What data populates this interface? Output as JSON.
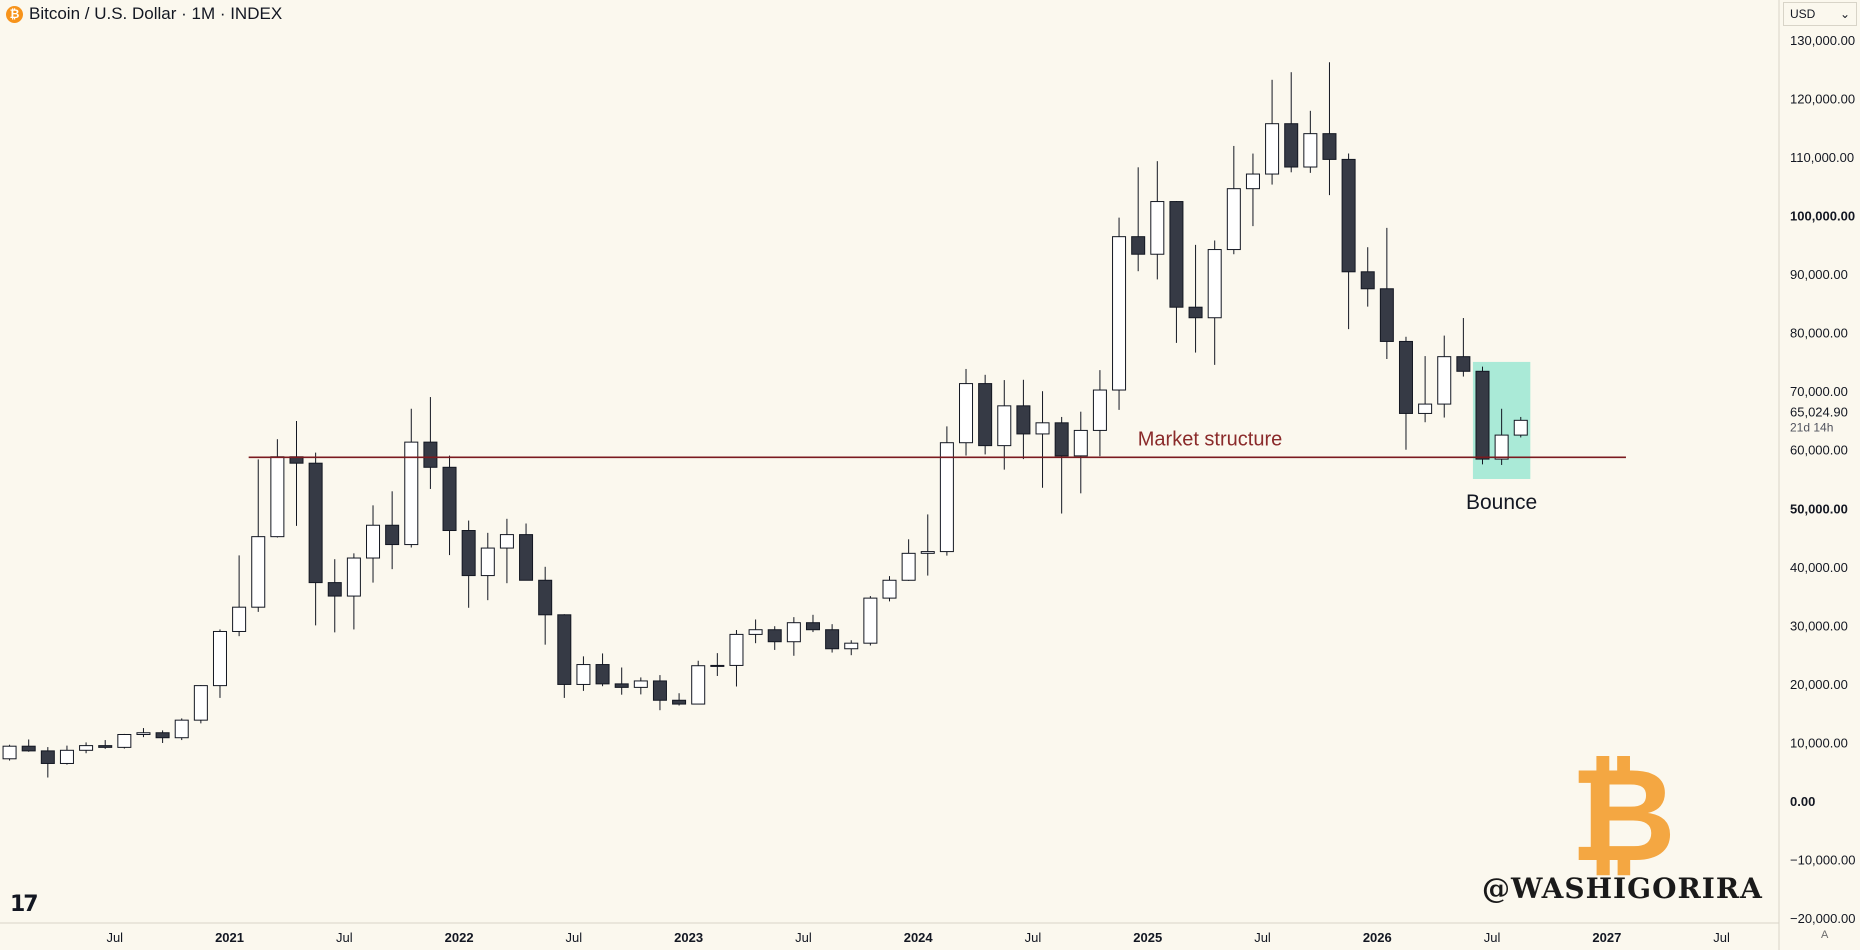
{
  "header": {
    "title": "Bitcoin / U.S. Dollar · 1M · INDEX",
    "coin_glyph": "₿"
  },
  "currency_selector": {
    "value": "USD",
    "chevron": "⌄"
  },
  "branding": {
    "logo_text": "17",
    "watermark": "@WASHIGORIRA",
    "btc_glyph": "₿",
    "scale_mode": "A"
  },
  "colors": {
    "background": "#fbf8ee",
    "bull_fill": "#ffffff",
    "bear_fill": "#363a45",
    "line": "#7b1a1f",
    "highlight": "#8fe6cf",
    "annotation": "#8a2a2a"
  },
  "chart_data": {
    "type": "candlestick",
    "title": "Bitcoin / U.S. Dollar · 1M · INDEX",
    "interval": "1M",
    "currency": "USD",
    "ylim": [
      -20000,
      130000
    ],
    "xlim": [
      "2020-01",
      "2027-09"
    ],
    "yticks": [
      "130,000.00",
      "120,000.00",
      "110,000.00",
      "100,000.00",
      "90,000.00",
      "80,000.00",
      "70,000.00",
      "60,000.00",
      "50,000.00",
      "40,000.00",
      "30,000.00",
      "20,000.00",
      "10,000.00",
      "0.00",
      "−10,000.00",
      "−20,000.00"
    ],
    "ytick_values": [
      130000,
      120000,
      110000,
      100000,
      90000,
      80000,
      70000,
      60000,
      50000,
      40000,
      30000,
      20000,
      10000,
      0,
      -10000,
      -20000
    ],
    "bold_ticks": [
      "100,000.00",
      "50,000.00",
      "0.00"
    ],
    "xticks": [
      {
        "date": "2020-07",
        "label": "Jul",
        "bold": false
      },
      {
        "date": "2021-01",
        "label": "2021",
        "bold": true
      },
      {
        "date": "2021-07",
        "label": "Jul",
        "bold": false
      },
      {
        "date": "2022-01",
        "label": "2022",
        "bold": true
      },
      {
        "date": "2022-07",
        "label": "Jul",
        "bold": false
      },
      {
        "date": "2023-01",
        "label": "2023",
        "bold": true
      },
      {
        "date": "2023-07",
        "label": "Jul",
        "bold": false
      },
      {
        "date": "2024-01",
        "label": "2024",
        "bold": true
      },
      {
        "date": "2024-07",
        "label": "Jul",
        "bold": false
      },
      {
        "date": "2025-01",
        "label": "2025",
        "bold": true
      },
      {
        "date": "2025-07",
        "label": "Jul",
        "bold": false
      },
      {
        "date": "2026-01",
        "label": "2026",
        "bold": true
      },
      {
        "date": "2026-07",
        "label": "Jul",
        "bold": false
      },
      {
        "date": "2027-01",
        "label": "2027",
        "bold": true
      },
      {
        "date": "2027-07",
        "label": "Jul",
        "bold": false
      }
    ],
    "candles": [
      {
        "date": "2020-01",
        "o": 7200,
        "h": 9600,
        "l": 6900,
        "c": 9350
      },
      {
        "date": "2020-02",
        "o": 9350,
        "h": 10500,
        "l": 8400,
        "c": 8550
      },
      {
        "date": "2020-03",
        "o": 8550,
        "h": 9200,
        "l": 4000,
        "c": 6400
      },
      {
        "date": "2020-04",
        "o": 6400,
        "h": 9450,
        "l": 6200,
        "c": 8650
      },
      {
        "date": "2020-05",
        "o": 8650,
        "h": 10000,
        "l": 8150,
        "c": 9450
      },
      {
        "date": "2020-06",
        "o": 9450,
        "h": 10400,
        "l": 8900,
        "c": 9150
      },
      {
        "date": "2020-07",
        "o": 9150,
        "h": 11450,
        "l": 8950,
        "c": 11350
      },
      {
        "date": "2020-08",
        "o": 11350,
        "h": 12450,
        "l": 10900,
        "c": 11650
      },
      {
        "date": "2020-09",
        "o": 11650,
        "h": 12050,
        "l": 9900,
        "c": 10800
      },
      {
        "date": "2020-10",
        "o": 10800,
        "h": 14100,
        "l": 10400,
        "c": 13800
      },
      {
        "date": "2020-11",
        "o": 13800,
        "h": 19800,
        "l": 13250,
        "c": 19700
      },
      {
        "date": "2020-12",
        "o": 19700,
        "h": 29300,
        "l": 17600,
        "c": 28950
      },
      {
        "date": "2021-01",
        "o": 28950,
        "h": 41950,
        "l": 28150,
        "c": 33100
      },
      {
        "date": "2021-02",
        "o": 33100,
        "h": 58350,
        "l": 32300,
        "c": 45150
      },
      {
        "date": "2021-03",
        "o": 45150,
        "h": 61800,
        "l": 45000,
        "c": 58800
      },
      {
        "date": "2021-04",
        "o": 58800,
        "h": 64900,
        "l": 47000,
        "c": 57700
      },
      {
        "date": "2021-05",
        "o": 57700,
        "h": 59500,
        "l": 30000,
        "c": 37300
      },
      {
        "date": "2021-06",
        "o": 37300,
        "h": 41300,
        "l": 28800,
        "c": 35000
      },
      {
        "date": "2021-07",
        "o": 35000,
        "h": 42300,
        "l": 29300,
        "c": 41500
      },
      {
        "date": "2021-08",
        "o": 41500,
        "h": 50500,
        "l": 37300,
        "c": 47100
      },
      {
        "date": "2021-09",
        "o": 47100,
        "h": 52900,
        "l": 39600,
        "c": 43800
      },
      {
        "date": "2021-10",
        "o": 43800,
        "h": 67000,
        "l": 43300,
        "c": 61300
      },
      {
        "date": "2021-11",
        "o": 61300,
        "h": 69000,
        "l": 53300,
        "c": 57000
      },
      {
        "date": "2021-12",
        "o": 57000,
        "h": 59000,
        "l": 42000,
        "c": 46200
      },
      {
        "date": "2022-01",
        "o": 46200,
        "h": 47900,
        "l": 33000,
        "c": 38500
      },
      {
        "date": "2022-02",
        "o": 38500,
        "h": 45800,
        "l": 34300,
        "c": 43200
      },
      {
        "date": "2022-03",
        "o": 43200,
        "h": 48200,
        "l": 37200,
        "c": 45500
      },
      {
        "date": "2022-04",
        "o": 45500,
        "h": 47400,
        "l": 37700,
        "c": 37700
      },
      {
        "date": "2022-05",
        "o": 37700,
        "h": 40000,
        "l": 26700,
        "c": 31800
      },
      {
        "date": "2022-06",
        "o": 31800,
        "h": 31900,
        "l": 17600,
        "c": 19900
      },
      {
        "date": "2022-07",
        "o": 19900,
        "h": 24700,
        "l": 18800,
        "c": 23300
      },
      {
        "date": "2022-08",
        "o": 23300,
        "h": 25200,
        "l": 19600,
        "c": 20000
      },
      {
        "date": "2022-09",
        "o": 20000,
        "h": 22800,
        "l": 18150,
        "c": 19400
      },
      {
        "date": "2022-10",
        "o": 19400,
        "h": 21100,
        "l": 18200,
        "c": 20500
      },
      {
        "date": "2022-11",
        "o": 20500,
        "h": 21500,
        "l": 15500,
        "c": 17200
      },
      {
        "date": "2022-12",
        "o": 17200,
        "h": 18400,
        "l": 16300,
        "c": 16550
      },
      {
        "date": "2023-01",
        "o": 16550,
        "h": 23950,
        "l": 16500,
        "c": 23100
      },
      {
        "date": "2023-02",
        "o": 23100,
        "h": 25250,
        "l": 21350,
        "c": 23150
      },
      {
        "date": "2023-03",
        "o": 23150,
        "h": 29200,
        "l": 19550,
        "c": 28450
      },
      {
        "date": "2023-04",
        "o": 28450,
        "h": 31000,
        "l": 26950,
        "c": 29250
      },
      {
        "date": "2023-05",
        "o": 29250,
        "h": 29850,
        "l": 25800,
        "c": 27200
      },
      {
        "date": "2023-06",
        "o": 27200,
        "h": 31400,
        "l": 24800,
        "c": 30450
      },
      {
        "date": "2023-07",
        "o": 30450,
        "h": 31800,
        "l": 28850,
        "c": 29250
      },
      {
        "date": "2023-08",
        "o": 29250,
        "h": 30200,
        "l": 25350,
        "c": 26000
      },
      {
        "date": "2023-09",
        "o": 26000,
        "h": 27450,
        "l": 24900,
        "c": 26950
      },
      {
        "date": "2023-10",
        "o": 26950,
        "h": 35000,
        "l": 26550,
        "c": 34650
      },
      {
        "date": "2023-11",
        "o": 34650,
        "h": 38400,
        "l": 34100,
        "c": 37700
      },
      {
        "date": "2023-12",
        "o": 37700,
        "h": 44700,
        "l": 37600,
        "c": 42300
      },
      {
        "date": "2024-01",
        "o": 42300,
        "h": 48950,
        "l": 38500,
        "c": 42600
      },
      {
        "date": "2024-02",
        "o": 42600,
        "h": 64000,
        "l": 41900,
        "c": 61200
      },
      {
        "date": "2024-03",
        "o": 61200,
        "h": 73800,
        "l": 59000,
        "c": 71300
      },
      {
        "date": "2024-04",
        "o": 71300,
        "h": 72800,
        "l": 59200,
        "c": 60700
      },
      {
        "date": "2024-05",
        "o": 60700,
        "h": 71900,
        "l": 56600,
        "c": 67500
      },
      {
        "date": "2024-06",
        "o": 67500,
        "h": 71950,
        "l": 58400,
        "c": 62700
      },
      {
        "date": "2024-07",
        "o": 62700,
        "h": 70000,
        "l": 53500,
        "c": 64600
      },
      {
        "date": "2024-08",
        "o": 64600,
        "h": 65600,
        "l": 49100,
        "c": 58950
      },
      {
        "date": "2024-09",
        "o": 58950,
        "h": 66500,
        "l": 52550,
        "c": 63300
      },
      {
        "date": "2024-10",
        "o": 63300,
        "h": 73600,
        "l": 58900,
        "c": 70200
      },
      {
        "date": "2024-11",
        "o": 70200,
        "h": 99650,
        "l": 66800,
        "c": 96400
      },
      {
        "date": "2024-12",
        "o": 96400,
        "h": 108250,
        "l": 90500,
        "c": 93400
      },
      {
        "date": "2025-01",
        "o": 93400,
        "h": 109300,
        "l": 89100,
        "c": 102400
      },
      {
        "date": "2025-02",
        "o": 102400,
        "h": 102500,
        "l": 78250,
        "c": 84350
      },
      {
        "date": "2025-03",
        "o": 84350,
        "h": 95000,
        "l": 76600,
        "c": 82550
      },
      {
        "date": "2025-04",
        "o": 82550,
        "h": 95750,
        "l": 74500,
        "c": 94200
      },
      {
        "date": "2025-05",
        "o": 94200,
        "h": 111900,
        "l": 93400,
        "c": 104600
      },
      {
        "date": "2025-06",
        "o": 104600,
        "h": 110600,
        "l": 98200,
        "c": 107100
      },
      {
        "date": "2025-07",
        "o": 107100,
        "h": 123200,
        "l": 105300,
        "c": 115700
      },
      {
        "date": "2025-08",
        "o": 115700,
        "h": 124500,
        "l": 107400,
        "c": 108300
      },
      {
        "date": "2025-09",
        "o": 108300,
        "h": 117900,
        "l": 107300,
        "c": 114000
      },
      {
        "date": "2025-10",
        "o": 114000,
        "h": 126200,
        "l": 103500,
        "c": 109600
      },
      {
        "date": "2025-11",
        "o": 109600,
        "h": 110600,
        "l": 80600,
        "c": 90400
      },
      {
        "date": "2025-12",
        "o": 90400,
        "h": 94600,
        "l": 84450,
        "c": 87500
      },
      {
        "date": "2026-01",
        "o": 87500,
        "h": 97900,
        "l": 75500,
        "c": 78500
      },
      {
        "date": "2026-02",
        "o": 78500,
        "h": 79300,
        "l": 60000,
        "c": 66200
      },
      {
        "date": "2026-03",
        "o": 66200,
        "h": 76000,
        "l": 64700,
        "c": 67800
      },
      {
        "date": "2026-04",
        "o": 67800,
        "h": 79500,
        "l": 65500,
        "c": 75900
      },
      {
        "date": "2026-05",
        "o": 75900,
        "h": 82500,
        "l": 72500,
        "c": 73400
      },
      {
        "date": "2026-06",
        "o": 73400,
        "h": 74200,
        "l": 57500,
        "c": 58400
      },
      {
        "date": "2026-07",
        "o": 58400,
        "h": 67000,
        "l": 57400,
        "c": 62500
      },
      {
        "date": "2026-08",
        "o": 62500,
        "h": 65600,
        "l": 62100,
        "c": 65025
      }
    ],
    "last_price": {
      "label": "65,024.90",
      "countdown": "21d 14h",
      "value": 65025
    },
    "annotations": [
      {
        "type": "hline",
        "label": "Market structure",
        "value": 58700,
        "x_start": "2021-02",
        "x_end": "2027-01"
      },
      {
        "type": "box",
        "label": "Bounce",
        "x_start": "2026-06",
        "x_end": "2026-08",
        "y_low": 55000,
        "y_high": 75000
      }
    ]
  }
}
